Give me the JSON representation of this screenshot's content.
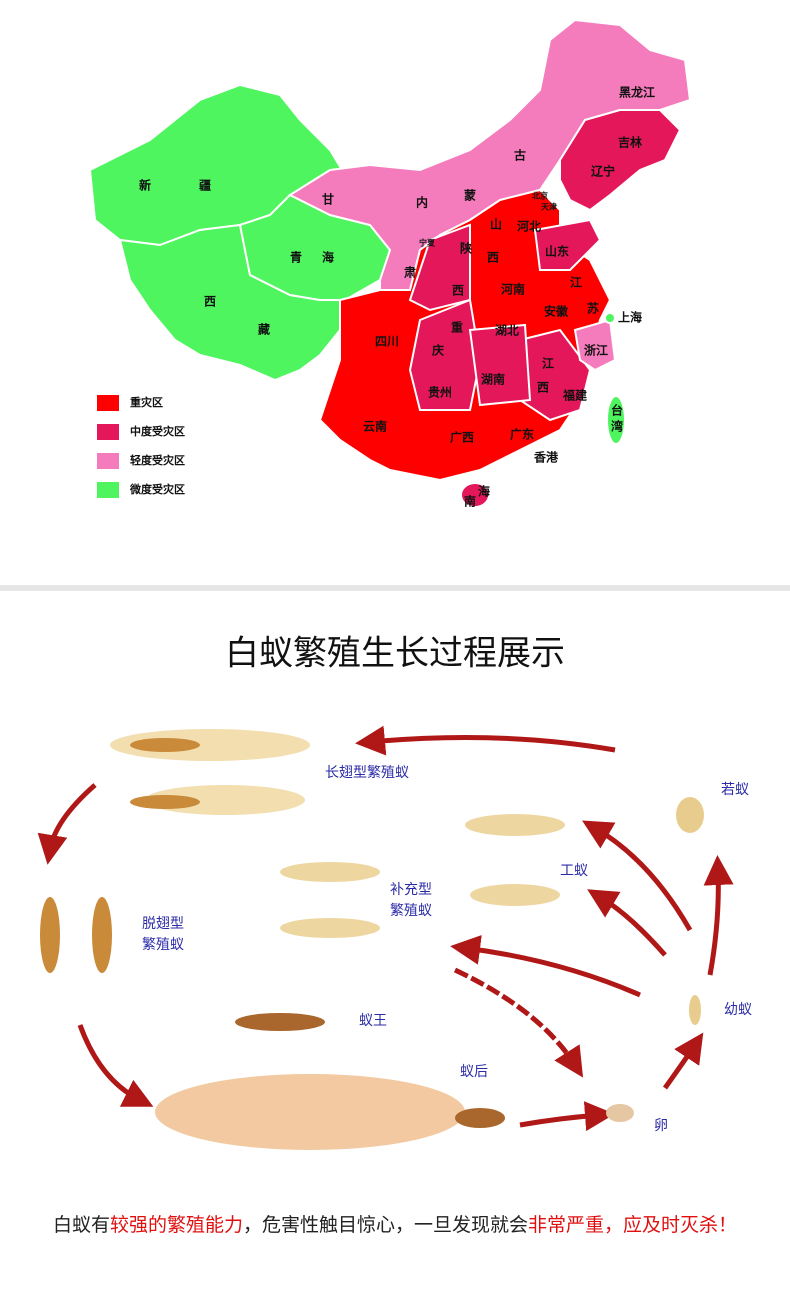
{
  "map": {
    "labels": [
      "黑龙江",
      "吉林",
      "辽宁",
      "古",
      "内",
      "蒙",
      "新",
      "疆",
      "甘",
      "青",
      "海",
      "肃",
      "宁夏",
      "陕",
      "西",
      "山",
      "西",
      "河北",
      "北京",
      "天津",
      "山东",
      "河南",
      "江",
      "苏",
      "安徽",
      "上海",
      "西",
      "藏",
      "四川",
      "重",
      "庆",
      "湖北",
      "浙江",
      "贵州",
      "湖南",
      "江",
      "西",
      "福建",
      "台",
      "湾",
      "云南",
      "广西",
      "广东",
      "香港",
      "海",
      "南"
    ],
    "legend": [
      {
        "label": "重灾区",
        "color": "#ff0000"
      },
      {
        "label": "中度受灾区",
        "color": "#e3175a"
      },
      {
        "label": "轻度受灾区",
        "color": "#f57cbc"
      },
      {
        "label": "微度受灾区",
        "color": "#4ef55e"
      }
    ]
  },
  "lifecycle": {
    "title": "白蚁繁殖生长过程展示",
    "labels": [
      "长翅型繁殖蚁",
      "若蚁",
      "工蚁",
      "补充型",
      "繁殖蚁",
      "脱翅型",
      "繁殖蚁",
      "幼蚁",
      "蚁王",
      "蚁后",
      "卵"
    ]
  },
  "footer": {
    "segments": [
      {
        "text": "白蚁有",
        "color": "#222222"
      },
      {
        "text": "较强的繁殖能力",
        "color": "#e01010"
      },
      {
        "text": "，危害性触目惊心，一旦发现就会",
        "color": "#222222"
      },
      {
        "text": "非常严重，应及时灭杀！",
        "color": "#e01010"
      }
    ]
  }
}
